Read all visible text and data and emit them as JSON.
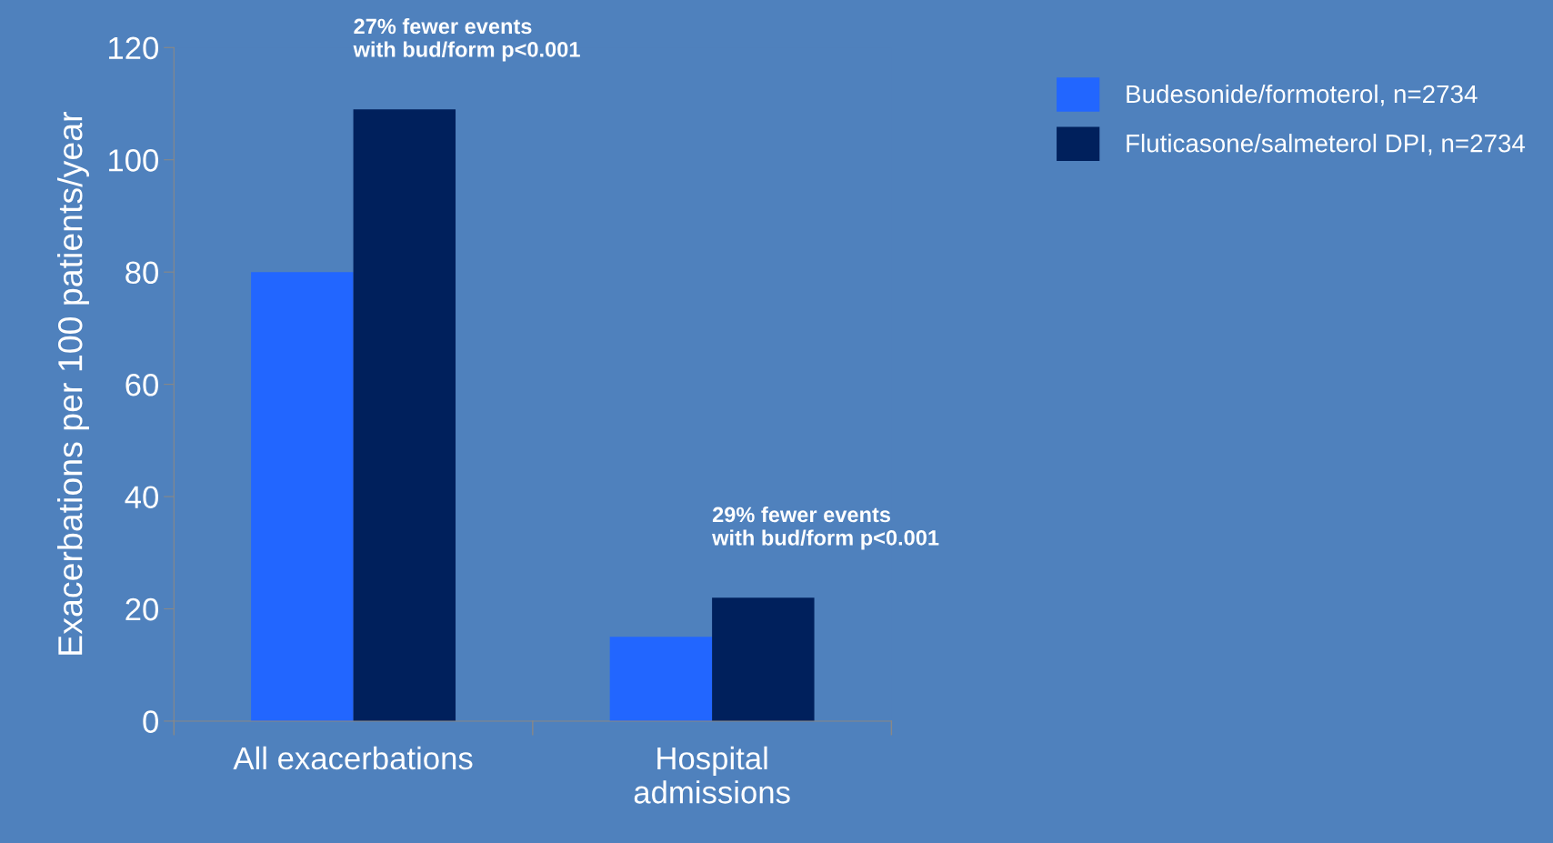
{
  "chart_data": {
    "type": "bar",
    "ylabel": "Exacerbations per 100 patients/year",
    "categories": [
      "All exacerbations",
      "Hospital\nadmissions"
    ],
    "series": [
      {
        "name": "Budesonide/formoterol, n=2734",
        "color": "#2266ff",
        "values": [
          80,
          15
        ]
      },
      {
        "name": "Fluticasone/salmeterol DPI, n=2734",
        "color": "#00205c",
        "values": [
          109,
          22
        ]
      }
    ],
    "ylim": [
      0,
      120
    ],
    "yticks": [
      0,
      20,
      40,
      60,
      80,
      100,
      120
    ],
    "grid": false,
    "legend": "top right",
    "annotations": [
      "27% fewer events\nwith bud/form p<0.001",
      "29% fewer events\nwith bud/form p<0.001"
    ]
  }
}
